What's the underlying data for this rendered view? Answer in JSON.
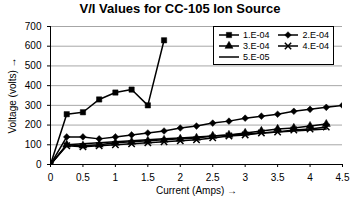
{
  "chart_data": {
    "type": "line",
    "title": "V/I Values for CC-105 Ion Source",
    "x_label": "Current (Amps)",
    "y_label": "Voltage (volts)",
    "x": [
      0,
      0.25,
      0.5,
      0.75,
      1.0,
      1.25,
      1.5,
      1.75,
      2.0,
      2.25,
      2.5,
      2.75,
      3.0,
      3.25,
      3.5,
      3.75,
      4.0,
      4.25,
      4.5
    ],
    "series": [
      {
        "name": "1.E-04",
        "color": "#000000",
        "marker": "square",
        "line_style": "solid",
        "values": [
          0,
          255,
          265,
          330,
          365,
          380,
          300,
          630,
          null,
          null,
          null,
          null,
          null,
          null,
          null,
          null,
          null,
          null,
          null
        ]
      },
      {
        "name": "2.E-04",
        "color": "#000000",
        "marker": "diamond",
        "line_style": "solid",
        "values": [
          0,
          140,
          140,
          130,
          140,
          150,
          160,
          170,
          185,
          195,
          210,
          220,
          235,
          245,
          255,
          270,
          280,
          290,
          300
        ]
      },
      {
        "name": "3.E-04",
        "color": "#000000",
        "marker": "triangle",
        "line_style": "solid",
        "values": [
          0,
          100,
          95,
          100,
          110,
          115,
          120,
          125,
          130,
          135,
          145,
          150,
          160,
          170,
          180,
          185,
          195,
          205,
          null
        ]
      },
      {
        "name": "4.E-04",
        "color": "#000000",
        "marker": "x",
        "line_style": "solid",
        "values": [
          0,
          95,
          90,
          95,
          100,
          105,
          110,
          115,
          120,
          125,
          135,
          145,
          150,
          160,
          165,
          175,
          180,
          190,
          null
        ]
      },
      {
        "name": "5.E-05",
        "color": "#000000",
        "marker": "none",
        "line_style": "solid",
        "values": [
          0,
          100,
          105,
          110,
          115,
          120,
          125,
          130,
          135,
          140,
          145,
          150,
          155,
          160,
          165,
          170,
          175,
          180,
          null
        ]
      }
    ],
    "xlim": [
      0,
      4.5
    ],
    "xticks": [
      0,
      0.5,
      1,
      1.5,
      2,
      2.5,
      3,
      3.5,
      4,
      4.5
    ],
    "ylim": [
      0,
      700
    ],
    "yticks": [
      0,
      100,
      200,
      300,
      400,
      500,
      600,
      700
    ],
    "grid": true,
    "legend": "upper right"
  }
}
